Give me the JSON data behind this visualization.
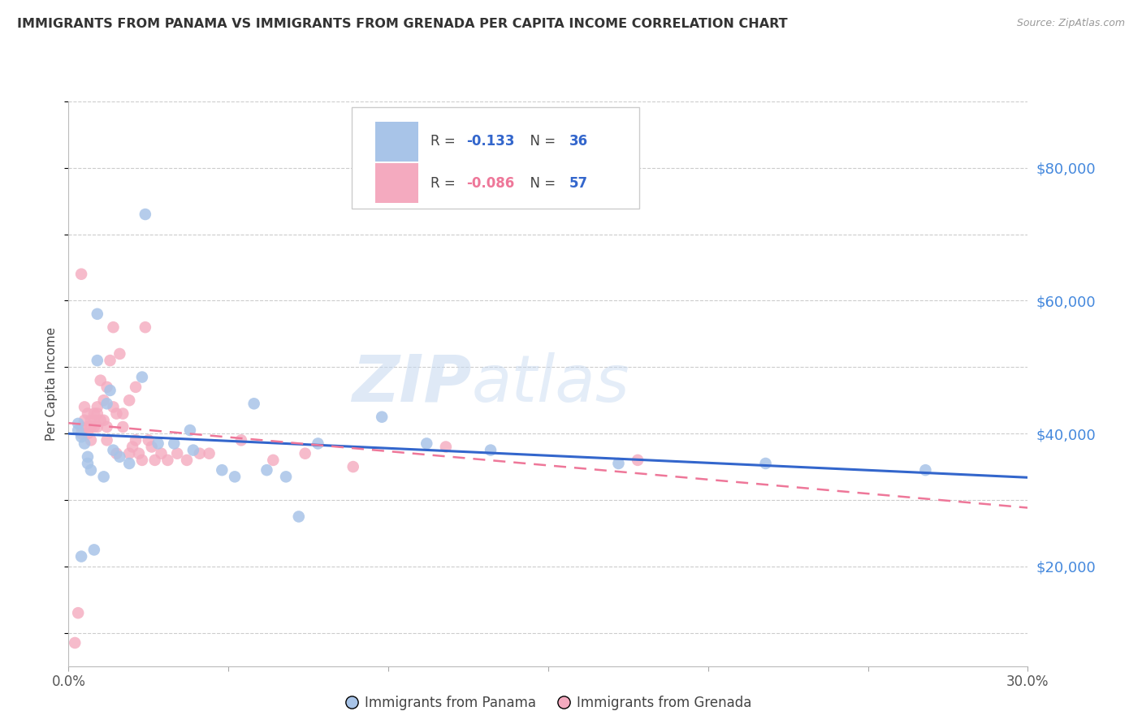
{
  "title": "IMMIGRANTS FROM PANAMA VS IMMIGRANTS FROM GRENADA PER CAPITA INCOME CORRELATION CHART",
  "source": "Source: ZipAtlas.com",
  "ylabel": "Per Capita Income",
  "xlim": [
    0.0,
    0.3
  ],
  "ylim": [
    5000,
    90000
  ],
  "yticks": [
    20000,
    40000,
    60000,
    80000
  ],
  "ytick_labels": [
    "$20,000",
    "$40,000",
    "$60,000",
    "$80,000"
  ],
  "xticks": [
    0.0,
    0.05,
    0.1,
    0.15,
    0.2,
    0.25,
    0.3
  ],
  "xtick_labels": [
    "0.0%",
    "",
    "",
    "",
    "",
    "",
    "30.0%"
  ],
  "panama_color": "#A8C4E8",
  "grenada_color": "#F4AABF",
  "panama_line_color": "#3366CC",
  "grenada_line_color": "#EE7799",
  "legend_label_panama": "Immigrants from Panama",
  "legend_label_grenada": "Immigrants from Grenada",
  "watermark_zip": "ZIP",
  "watermark_atlas": "atlas",
  "panama_x": [
    0.004,
    0.008,
    0.024,
    0.009,
    0.003,
    0.003,
    0.004,
    0.005,
    0.006,
    0.006,
    0.007,
    0.009,
    0.011,
    0.012,
    0.013,
    0.014,
    0.016,
    0.019,
    0.023,
    0.028,
    0.033,
    0.038,
    0.039,
    0.048,
    0.052,
    0.058,
    0.062,
    0.068,
    0.072,
    0.078,
    0.098,
    0.112,
    0.132,
    0.172,
    0.218,
    0.268
  ],
  "panama_y": [
    21500,
    22500,
    73000,
    58000,
    41500,
    40500,
    39500,
    38500,
    36500,
    35500,
    34500,
    51000,
    33500,
    44500,
    46500,
    37500,
    36500,
    35500,
    48500,
    38500,
    38500,
    40500,
    37500,
    34500,
    33500,
    44500,
    34500,
    33500,
    27500,
    38500,
    42500,
    38500,
    37500,
    35500,
    35500,
    34500
  ],
  "grenada_x": [
    0.002,
    0.003,
    0.004,
    0.004,
    0.005,
    0.005,
    0.006,
    0.006,
    0.006,
    0.007,
    0.007,
    0.007,
    0.008,
    0.008,
    0.008,
    0.009,
    0.009,
    0.009,
    0.01,
    0.01,
    0.011,
    0.011,
    0.012,
    0.012,
    0.012,
    0.013,
    0.014,
    0.014,
    0.015,
    0.015,
    0.016,
    0.017,
    0.017,
    0.019,
    0.019,
    0.02,
    0.021,
    0.021,
    0.022,
    0.023,
    0.024,
    0.025,
    0.026,
    0.027,
    0.029,
    0.031,
    0.034,
    0.037,
    0.041,
    0.044,
    0.054,
    0.064,
    0.074,
    0.089,
    0.118,
    0.178,
    0.004
  ],
  "grenada_y": [
    8500,
    13000,
    41000,
    40000,
    44000,
    42000,
    43000,
    41000,
    40000,
    42000,
    41000,
    39000,
    43000,
    42000,
    41000,
    44000,
    43000,
    41000,
    48000,
    42000,
    45000,
    42000,
    47000,
    41000,
    39000,
    51000,
    56000,
    44000,
    43000,
    37000,
    52000,
    43000,
    41000,
    45000,
    37000,
    38000,
    47000,
    39000,
    37000,
    36000,
    56000,
    39000,
    38000,
    36000,
    37000,
    36000,
    37000,
    36000,
    37000,
    37000,
    39000,
    36000,
    37000,
    35000,
    38000,
    36000,
    64000
  ]
}
